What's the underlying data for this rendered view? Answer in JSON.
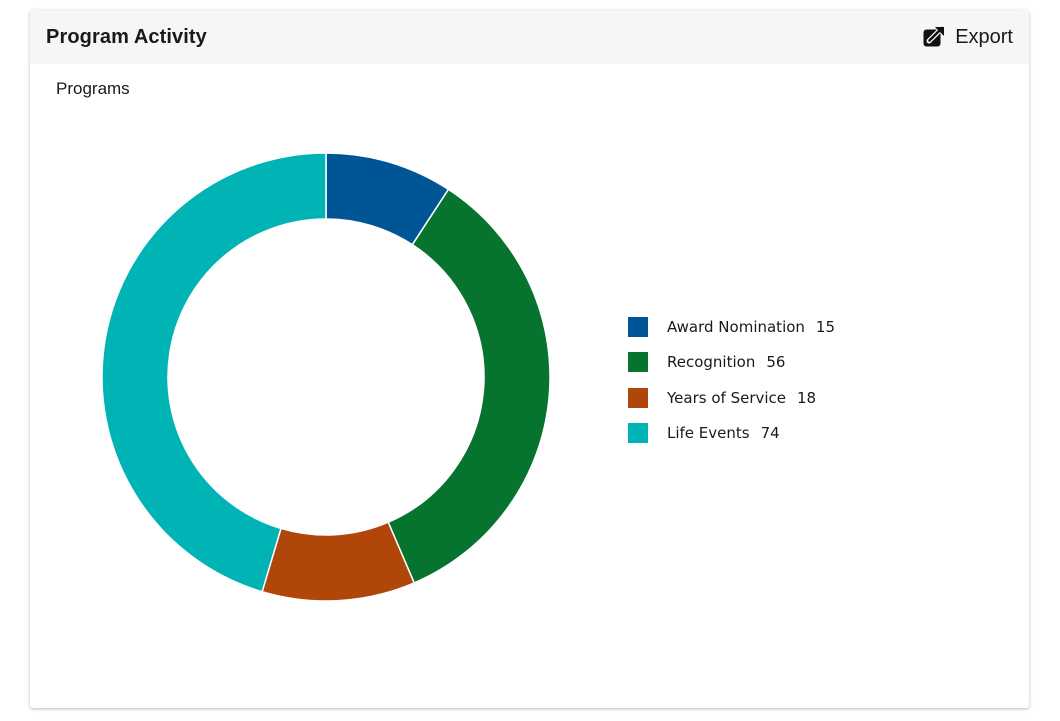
{
  "card": {
    "title": "Program Activity",
    "export_label": "Export",
    "export_icon": "external-link-icon"
  },
  "section_label": "Programs",
  "chart_data": {
    "type": "pie",
    "variant": "donut",
    "title": "",
    "categories": [
      "Award Nomination",
      "Recognition",
      "Years of Service",
      "Life Events"
    ],
    "values": [
      15,
      56,
      18,
      74
    ],
    "colors": [
      "#005596",
      "#06732e",
      "#b04609",
      "#00b3b5"
    ],
    "legend_position": "right"
  }
}
